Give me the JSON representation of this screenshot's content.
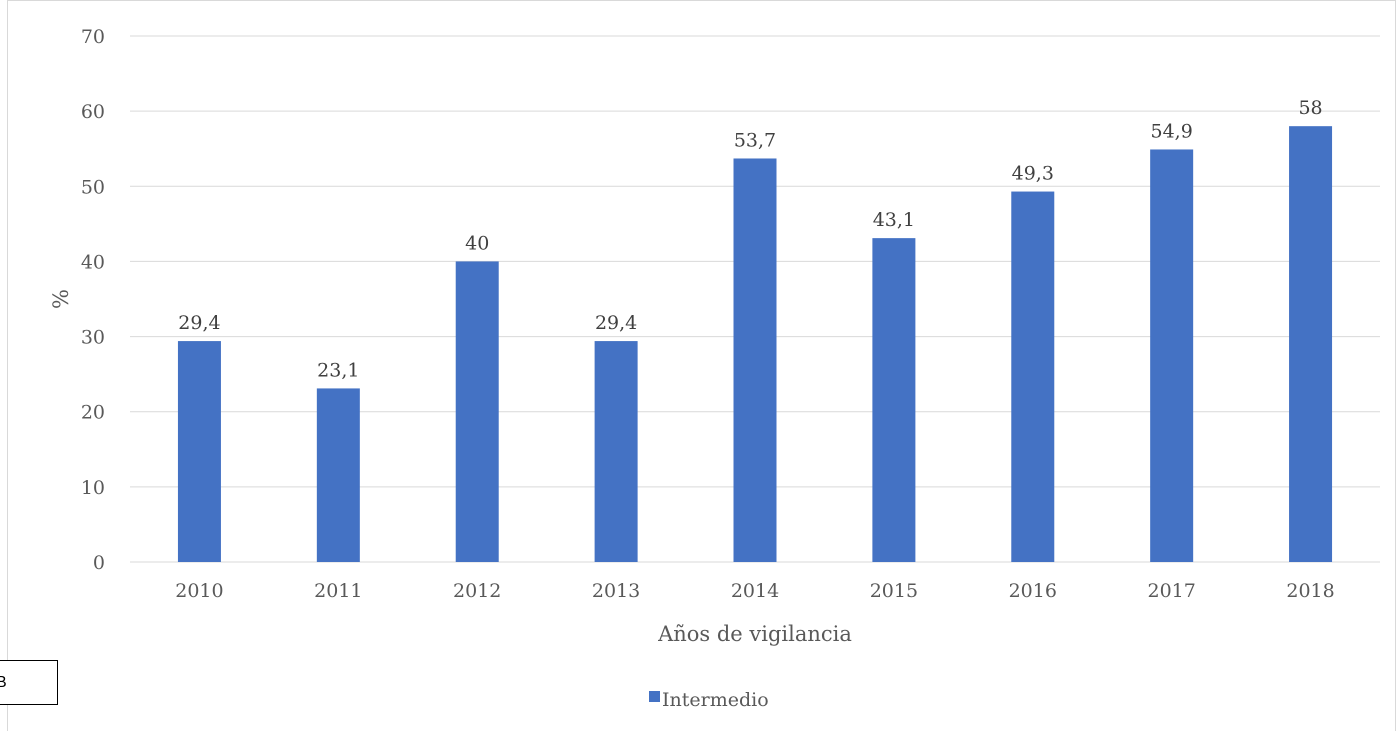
{
  "chart_data": {
    "type": "bar",
    "categories": [
      "2010",
      "2011",
      "2012",
      "2013",
      "2014",
      "2015",
      "2016",
      "2017",
      "2018"
    ],
    "series": [
      {
        "name": "Intermedio",
        "values": [
          29.4,
          23.1,
          40,
          29.4,
          53.7,
          43.1,
          49.3,
          54.9,
          58
        ]
      }
    ],
    "data_labels": [
      "29,4",
      "23,1",
      "40",
      "29,4",
      "53,7",
      "43,1",
      "49,3",
      "54,9",
      "58"
    ],
    "y_ticks": [
      "0",
      "10",
      "20",
      "30",
      "40",
      "50",
      "60",
      "70"
    ],
    "xlabel": "Años de vigilancia",
    "ylabel": "%",
    "ylim": [
      0,
      70
    ],
    "grid": true,
    "legend_position": "bottom",
    "bar_color": "#4472c4"
  },
  "panel_letter": "B"
}
